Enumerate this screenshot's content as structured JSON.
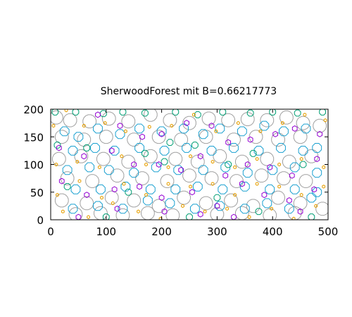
{
  "chart_data": {
    "type": "scatter",
    "title": "SherwoodForest mit B=0.66217773",
    "xlim": [
      0,
      500
    ],
    "ylim": [
      0,
      200
    ],
    "x_ticks": [
      "0",
      "100",
      "200",
      "300",
      "400",
      "500"
    ],
    "y_ticks": [
      "0",
      "50",
      "100",
      "150",
      "200"
    ],
    "grid": false,
    "legend": "none",
    "marker": "open polygons (circle-like), radius proportional to size",
    "colors": {
      "large": "#a0a0a0",
      "medium": "#1aa0d0",
      "small": "#009e73",
      "smaller": "#9400d3",
      "tiny": "#e69f00"
    },
    "series_sizes": {
      "large": 11,
      "medium": 8,
      "small": 5.5,
      "smaller": 4.5,
      "tiny": 2.5
    },
    "approximate_counts": {
      "large": 90,
      "medium": 90,
      "small": 110,
      "smaller": 100,
      "tiny": 180
    },
    "sample_points": {
      "large": [
        [
          10,
          185
        ],
        [
          35,
          180
        ],
        [
          70,
          178
        ],
        [
          105,
          183
        ],
        [
          140,
          178
        ],
        [
          180,
          190
        ],
        [
          215,
          180
        ],
        [
          250,
          175
        ],
        [
          285,
          183
        ],
        [
          320,
          180
        ],
        [
          355,
          182
        ],
        [
          390,
          180
        ],
        [
          425,
          185
        ],
        [
          455,
          175
        ],
        [
          485,
          170
        ],
        [
          20,
          150
        ],
        [
          60,
          145
        ],
        [
          100,
          150
        ],
        [
          150,
          145
        ],
        [
          195,
          150
        ],
        [
          235,
          145
        ],
        [
          280,
          150
        ],
        [
          330,
          145
        ],
        [
          370,
          150
        ],
        [
          410,
          145
        ],
        [
          450,
          150
        ],
        [
          15,
          110
        ],
        [
          55,
          115
        ],
        [
          95,
          110
        ],
        [
          140,
          105
        ],
        [
          180,
          115
        ],
        [
          225,
          110
        ],
        [
          265,
          105
        ],
        [
          305,
          115
        ],
        [
          345,
          105
        ],
        [
          390,
          110
        ],
        [
          430,
          105
        ],
        [
          470,
          115
        ],
        [
          30,
          75
        ],
        [
          75,
          70
        ],
        [
          120,
          80
        ],
        [
          165,
          75
        ],
        [
          210,
          70
        ],
        [
          250,
          80
        ],
        [
          290,
          75
        ],
        [
          335,
          70
        ],
        [
          380,
          80
        ],
        [
          420,
          75
        ],
        [
          460,
          70
        ],
        [
          20,
          35
        ],
        [
          65,
          30
        ],
        [
          110,
          40
        ],
        [
          150,
          35
        ],
        [
          195,
          25
        ],
        [
          240,
          40
        ],
        [
          280,
          30
        ],
        [
          325,
          35
        ],
        [
          365,
          25
        ],
        [
          410,
          40
        ],
        [
          450,
          30
        ],
        [
          490,
          20
        ],
        [
          45,
          10
        ],
        [
          90,
          12
        ],
        [
          130,
          8
        ],
        [
          175,
          12
        ],
        [
          220,
          8
        ],
        [
          300,
          10
        ],
        [
          345,
          12
        ],
        [
          395,
          8
        ],
        [
          440,
          12
        ]
      ],
      "medium": [
        [
          25,
          160
        ],
        [
          50,
          150
        ],
        [
          85,
          165
        ],
        [
          125,
          155
        ],
        [
          160,
          165
        ],
        [
          200,
          160
        ],
        [
          240,
          165
        ],
        [
          275,
          155
        ],
        [
          305,
          165
        ],
        [
          345,
          160
        ],
        [
          385,
          170
        ],
        [
          420,
          160
        ],
        [
          460,
          165
        ],
        [
          480,
          130
        ],
        [
          40,
          125
        ],
        [
          80,
          130
        ],
        [
          115,
          125
        ],
        [
          160,
          130
        ],
        [
          205,
          125
        ],
        [
          245,
          130
        ],
        [
          290,
          125
        ],
        [
          330,
          130
        ],
        [
          375,
          125
        ],
        [
          415,
          130
        ],
        [
          455,
          125
        ],
        [
          30,
          90
        ],
        [
          70,
          95
        ],
        [
          105,
          90
        ],
        [
          150,
          85
        ],
        [
          190,
          95
        ],
        [
          230,
          90
        ],
        [
          275,
          90
        ],
        [
          315,
          95
        ],
        [
          355,
          85
        ],
        [
          400,
          90
        ],
        [
          440,
          95
        ],
        [
          480,
          85
        ],
        [
          45,
          55
        ],
        [
          90,
          55
        ],
        [
          135,
          60
        ],
        [
          180,
          55
        ],
        [
          225,
          55
        ],
        [
          265,
          60
        ],
        [
          310,
          55
        ],
        [
          350,
          60
        ],
        [
          395,
          55
        ],
        [
          440,
          55
        ],
        [
          480,
          50
        ],
        [
          40,
          20
        ],
        [
          85,
          25
        ],
        [
          130,
          20
        ],
        [
          175,
          35
        ],
        [
          215,
          30
        ],
        [
          260,
          20
        ],
        [
          305,
          25
        ],
        [
          350,
          20
        ],
        [
          390,
          30
        ],
        [
          430,
          20
        ],
        [
          470,
          40
        ]
      ],
      "small": [
        [
          8,
          195
        ],
        [
          45,
          195
        ],
        [
          95,
          192
        ],
        [
          130,
          195
        ],
        [
          170,
          193
        ],
        [
          225,
          195
        ],
        [
          265,
          190
        ],
        [
          310,
          195
        ],
        [
          360,
          193
        ],
        [
          400,
          195
        ],
        [
          445,
          193
        ],
        [
          490,
          195
        ],
        [
          12,
          135
        ],
        [
          65,
          130
        ],
        [
          170,
          120
        ],
        [
          215,
          140
        ],
        [
          260,
          135
        ],
        [
          320,
          100
        ],
        [
          365,
          120
        ],
        [
          455,
          100
        ],
        [
          30,
          60
        ],
        [
          140,
          50
        ],
        [
          205,
          105
        ],
        [
          300,
          40
        ],
        [
          375,
          15
        ],
        [
          470,
          5
        ],
        [
          100,
          5
        ],
        [
          250,
          5
        ]
      ],
      "smaller": [
        [
          85,
          190
        ],
        [
          125,
          170
        ],
        [
          165,
          150
        ],
        [
          200,
          155
        ],
        [
          245,
          175
        ],
        [
          290,
          170
        ],
        [
          320,
          140
        ],
        [
          360,
          145
        ],
        [
          405,
          155
        ],
        [
          440,
          165
        ],
        [
          485,
          155
        ],
        [
          15,
          130
        ],
        [
          60,
          115
        ],
        [
          110,
          125
        ],
        [
          150,
          100
        ],
        [
          195,
          100
        ],
        [
          235,
          90
        ],
        [
          270,
          115
        ],
        [
          315,
          80
        ],
        [
          355,
          100
        ],
        [
          395,
          95
        ],
        [
          435,
          80
        ],
        [
          480,
          110
        ],
        [
          20,
          70
        ],
        [
          65,
          45
        ],
        [
          115,
          55
        ],
        [
          160,
          60
        ],
        [
          200,
          40
        ],
        [
          255,
          50
        ],
        [
          300,
          25
        ],
        [
          345,
          65
        ],
        [
          385,
          45
        ],
        [
          430,
          35
        ],
        [
          475,
          55
        ],
        [
          50,
          5
        ],
        [
          120,
          20
        ],
        [
          205,
          15
        ],
        [
          270,
          10
        ],
        [
          330,
          5
        ],
        [
          450,
          15
        ]
      ],
      "tiny": [
        [
          5,
          170
        ],
        [
          28,
          198
        ],
        [
          60,
          170
        ],
        [
          98,
          175
        ],
        [
          135,
          160
        ],
        [
          178,
          168
        ],
        [
          218,
          170
        ],
        [
          258,
          190
        ],
        [
          298,
          160
        ],
        [
          338,
          175
        ],
        [
          378,
          160
        ],
        [
          418,
          175
        ],
        [
          458,
          190
        ],
        [
          495,
          180
        ],
        [
          10,
          100
        ],
        [
          48,
          105
        ],
        [
          88,
          95
        ],
        [
          128,
          115
        ],
        [
          172,
          100
        ],
        [
          212,
          95
        ],
        [
          252,
          115
        ],
        [
          292,
          105
        ],
        [
          332,
          95
        ],
        [
          372,
          110
        ],
        [
          412,
          100
        ],
        [
          452,
          110
        ],
        [
          492,
          95
        ],
        [
          12,
          45
        ],
        [
          52,
          70
        ],
        [
          92,
          40
        ],
        [
          132,
          65
        ],
        [
          172,
          45
        ],
        [
          212,
          65
        ],
        [
          252,
          60
        ],
        [
          292,
          65
        ],
        [
          332,
          45
        ],
        [
          372,
          65
        ],
        [
          412,
          60
        ],
        [
          452,
          45
        ],
        [
          492,
          60
        ],
        [
          22,
          15
        ],
        [
          68,
          5
        ],
        [
          112,
          30
        ],
        [
          158,
          15
        ],
        [
          198,
          2
        ],
        [
          238,
          25
        ],
        [
          278,
          15
        ],
        [
          318,
          20
        ],
        [
          358,
          5
        ],
        [
          398,
          20
        ],
        [
          438,
          2
        ],
        [
          478,
          25
        ]
      ]
    }
  }
}
